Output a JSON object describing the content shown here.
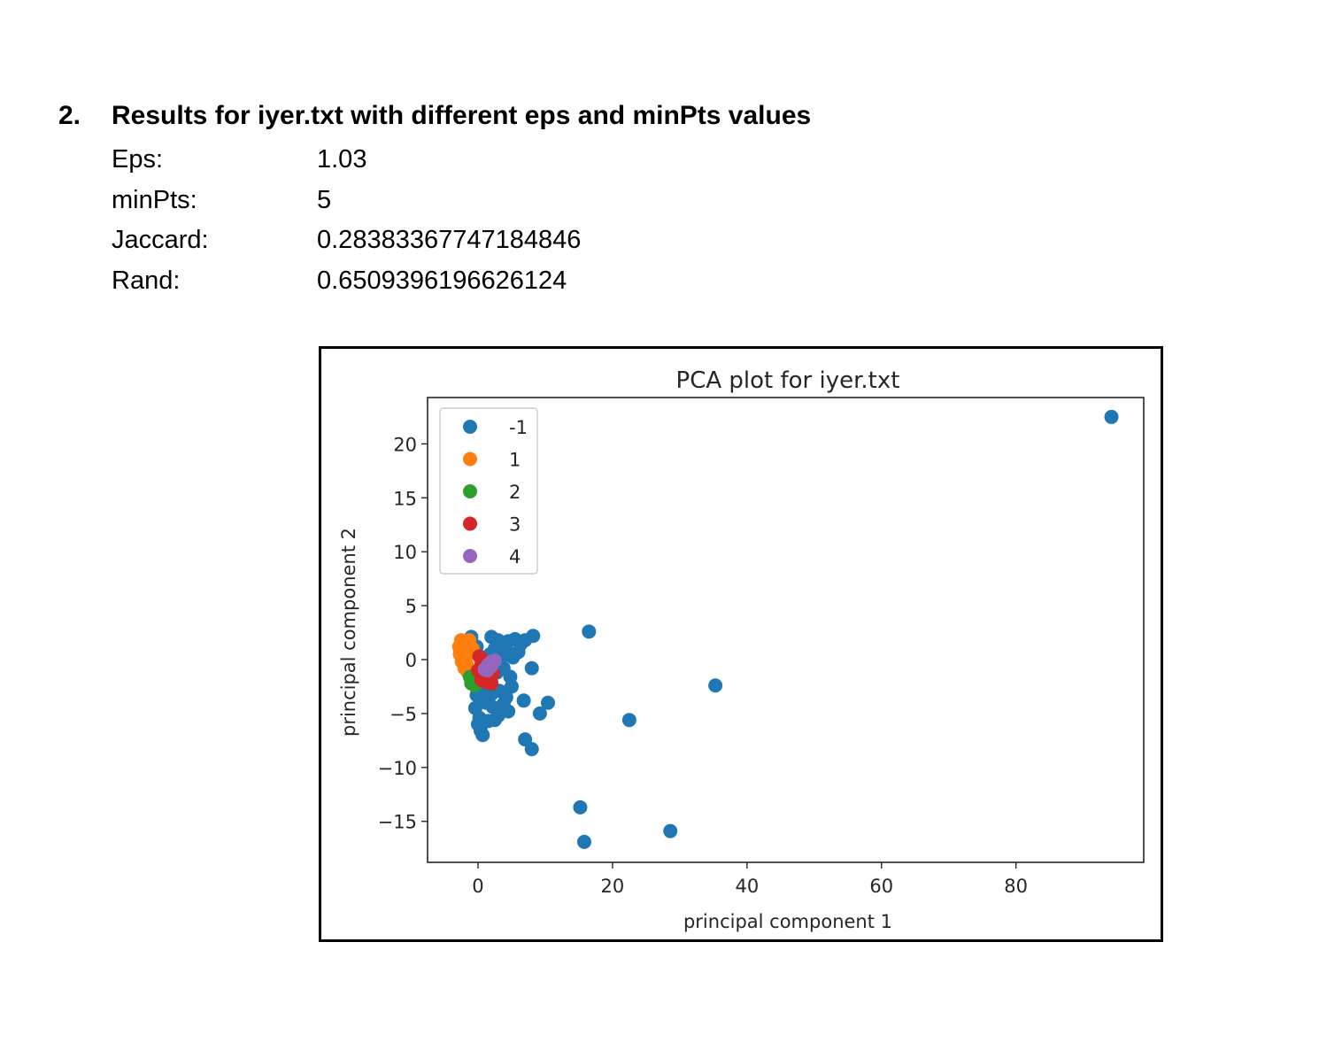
{
  "section": {
    "number": "2.",
    "title": "Results for iyer.txt with different eps and minPts values"
  },
  "results": [
    {
      "label": "Eps:",
      "value": "1.03"
    },
    {
      "label": "minPts:",
      "value": "5"
    },
    {
      "label": "Jaccard:",
      "value": "0.28383367747184846"
    },
    {
      "label": "Rand:",
      "value": "0.6509396196626124"
    }
  ],
  "chart_data": {
    "type": "scatter",
    "title": "PCA plot for iyer.txt",
    "xlabel": "principal component 1",
    "ylabel": "principal component 2",
    "xlim": [
      -7.5,
      99
    ],
    "ylim": [
      -18.8,
      24.3
    ],
    "xticks": [
      0,
      20,
      40,
      60,
      80
    ],
    "yticks": [
      20,
      15,
      10,
      5,
      0,
      -5,
      -10,
      -15
    ],
    "xtick_labels": [
      "0",
      "20",
      "40",
      "60",
      "80"
    ],
    "ytick_labels": [
      "20",
      "15",
      "10",
      "5",
      "0",
      "−5",
      "−10",
      "−15"
    ],
    "grid": false,
    "legend_position": "upper-left",
    "series": [
      {
        "name": "-1",
        "color": "#1f77b4",
        "points": [
          [
            94.2,
            22.5
          ],
          [
            16.5,
            2.6
          ],
          [
            35.3,
            -2.4
          ],
          [
            22.5,
            -5.6
          ],
          [
            15.2,
            -13.7
          ],
          [
            15.8,
            -16.9
          ],
          [
            28.6,
            -15.9
          ],
          [
            8.2,
            2.2
          ],
          [
            8.0,
            -0.8
          ],
          [
            10.4,
            -4.0
          ],
          [
            9.2,
            -5.0
          ],
          [
            6.8,
            -3.8
          ],
          [
            7.0,
            -7.4
          ],
          [
            8.0,
            -8.3
          ],
          [
            2.0,
            2.1
          ],
          [
            3.0,
            1.8
          ],
          [
            4.5,
            1.7
          ],
          [
            5.5,
            1.9
          ],
          [
            6.3,
            1.4
          ],
          [
            7.0,
            1.8
          ],
          [
            6.0,
            0.7
          ],
          [
            5.2,
            0.2
          ],
          [
            4.3,
            0.8
          ],
          [
            3.5,
            0.2
          ],
          [
            2.5,
            1.0
          ],
          [
            -1.0,
            2.1
          ],
          [
            -0.2,
            1.2
          ],
          [
            3.8,
            -0.8
          ],
          [
            4.8,
            -1.6
          ],
          [
            5.0,
            -2.5
          ],
          [
            4.2,
            -3.5
          ],
          [
            3.2,
            -2.9
          ],
          [
            2.0,
            -3.2
          ],
          [
            2.2,
            -4.4
          ],
          [
            3.0,
            -5.2
          ],
          [
            3.8,
            -4.1
          ],
          [
            4.5,
            -4.8
          ],
          [
            1.2,
            -4.0
          ],
          [
            0.5,
            -3.8
          ],
          [
            -0.2,
            -3.3
          ],
          [
            -0.4,
            -4.5
          ],
          [
            0.2,
            -5.4
          ],
          [
            0.0,
            -6.0
          ],
          [
            0.4,
            -6.6
          ],
          [
            0.7,
            -7.0
          ],
          [
            1.5,
            -5.7
          ],
          [
            2.5,
            -5.6
          ],
          [
            1.0,
            -2.8
          ],
          [
            0.0,
            -2.5
          ],
          [
            -0.5,
            -2.0
          ],
          [
            2.8,
            -1.2
          ],
          [
            3.2,
            -0.2
          ],
          [
            1.8,
            0.5
          ]
        ]
      },
      {
        "name": "1",
        "color": "#ff7f0e",
        "points": [
          [
            -2.5,
            1.8
          ],
          [
            -2.0,
            1.6
          ],
          [
            -1.3,
            1.8
          ],
          [
            -2.8,
            1.2
          ],
          [
            -2.2,
            0.9
          ],
          [
            -1.5,
            1.2
          ],
          [
            -0.8,
            1.0
          ],
          [
            -2.7,
            0.5
          ],
          [
            -2.0,
            0.2
          ],
          [
            -1.5,
            0.5
          ],
          [
            -2.4,
            -0.2
          ],
          [
            -1.7,
            -0.4
          ],
          [
            -2.0,
            -0.8
          ],
          [
            -1.5,
            -1.2
          ]
        ]
      },
      {
        "name": "2",
        "color": "#2ca02c",
        "points": [
          [
            -1.2,
            -1.6
          ],
          [
            -1.0,
            -2.2
          ],
          [
            -0.5,
            -2.4
          ],
          [
            -0.2,
            -1.9
          ]
        ]
      },
      {
        "name": "3",
        "color": "#d62728",
        "points": [
          [
            0.2,
            0.3
          ],
          [
            0.5,
            -0.5
          ],
          [
            1.2,
            -0.2
          ],
          [
            0.0,
            -1.0
          ],
          [
            0.8,
            -1.4
          ],
          [
            1.5,
            -1.0
          ],
          [
            2.2,
            -1.3
          ],
          [
            0.5,
            -1.9
          ],
          [
            1.3,
            -2.1
          ],
          [
            2.0,
            -2.2
          ],
          [
            1.0,
            -0.8
          ]
        ]
      },
      {
        "name": "4",
        "color": "#9467bd",
        "points": [
          [
            1.0,
            -0.9
          ],
          [
            1.5,
            -0.5
          ],
          [
            2.0,
            -0.2
          ],
          [
            2.5,
            -0.1
          ],
          [
            1.4,
            -1.0
          ],
          [
            2.0,
            -0.6
          ]
        ]
      }
    ]
  }
}
